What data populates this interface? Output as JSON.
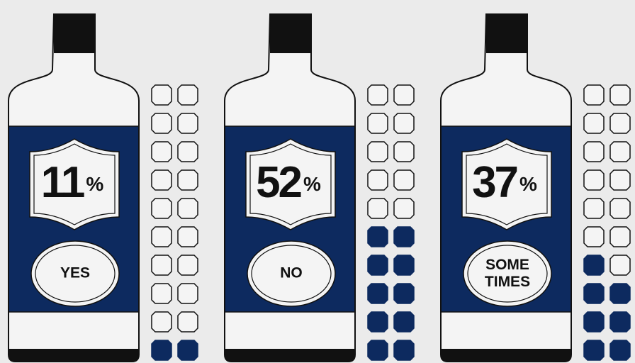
{
  "chart_data": {
    "type": "bottle",
    "categories": [
      "YES",
      "NO",
      "SOME TIMES"
    ],
    "values": [
      11,
      52,
      37
    ],
    "unit": "%",
    "color": "#0d2a5f"
  }
}
